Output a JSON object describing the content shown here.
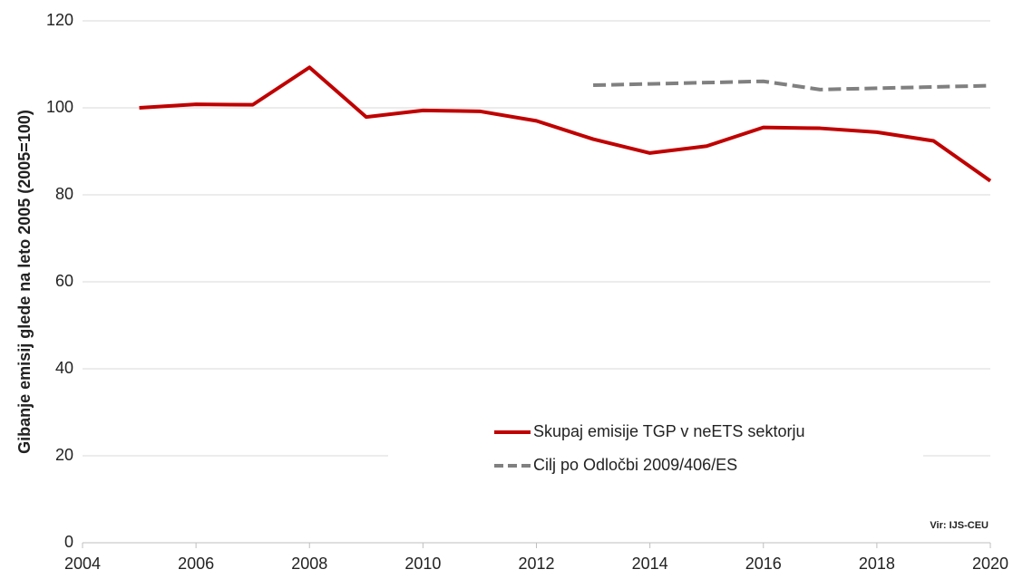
{
  "chart_data": {
    "type": "line",
    "y_label": "Gibanje emisij glede na leto 2005 (2005=100)",
    "source": "Vir: IJS-CEU",
    "x": [
      2005,
      2006,
      2007,
      2008,
      2009,
      2010,
      2011,
      2012,
      2013,
      2014,
      2015,
      2016,
      2017,
      2018,
      2019,
      2020
    ],
    "series": [
      {
        "name": "Skupaj emisije TGP v neETS sektorju",
        "color": "#c00000",
        "dash": false,
        "values": [
          100,
          100.8,
          100.7,
          109.3,
          97.9,
          99.4,
          99.2,
          97.0,
          92.8,
          89.6,
          91.2,
          95.5,
          95.3,
          94.4,
          92.4,
          83.2
        ]
      },
      {
        "name": "Cilj po Odločbi 2009/406/ES",
        "color": "#808080",
        "dash": true,
        "values": [
          null,
          null,
          null,
          null,
          null,
          null,
          null,
          null,
          105.2,
          105.5,
          105.8,
          106.1,
          104.2,
          104.5,
          104.8,
          105.1
        ]
      }
    ],
    "xlim": [
      2004,
      2020
    ],
    "xticks": [
      2004,
      2006,
      2008,
      2010,
      2012,
      2014,
      2016,
      2018,
      2020
    ],
    "ylim": [
      0,
      120
    ],
    "yticks": [
      0,
      20,
      40,
      60,
      80,
      100,
      120
    ],
    "grid": true
  }
}
